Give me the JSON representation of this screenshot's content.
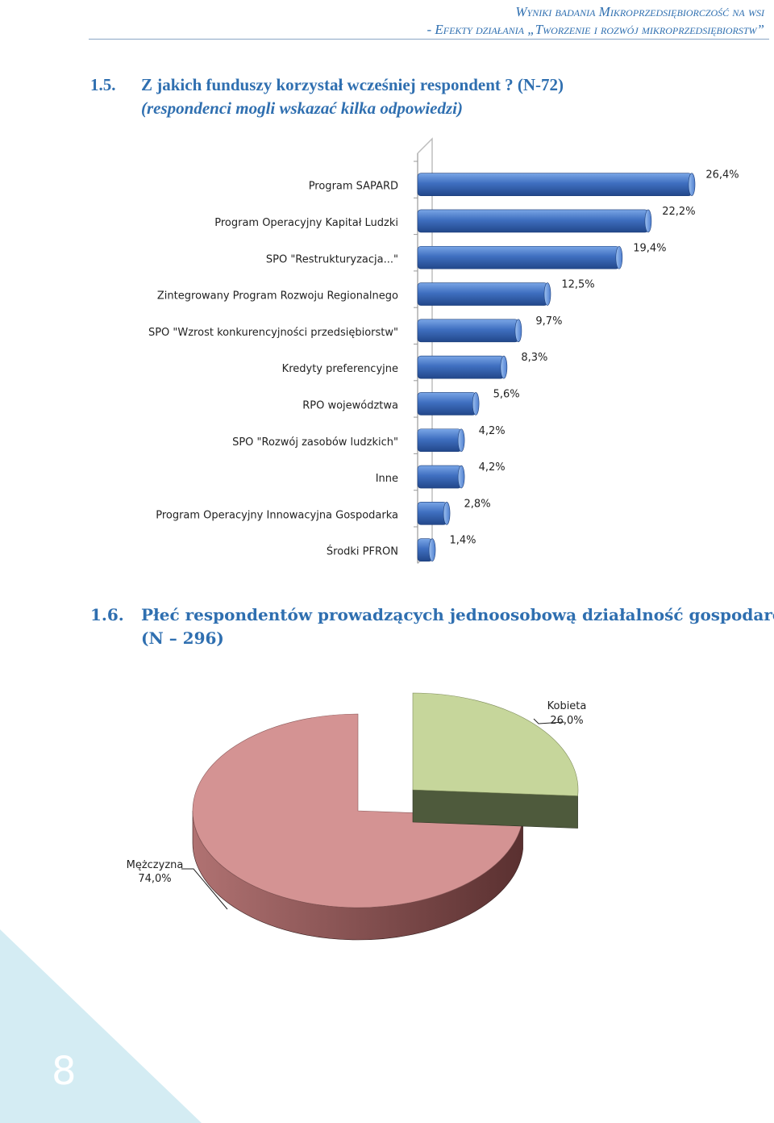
{
  "header": {
    "line1": "Wyniki badania Mikroprzedsiębiorczość na wsi",
    "line2": "- Efekty działania „Tworzenie i rozwój mikroprzedsiębiorstw”"
  },
  "section1": {
    "number": "1.5.",
    "question": "Z jakich funduszy korzystał wcześniej respondent ? (N-72)",
    "subtitle": "(respondenci mogli wskazać kilka odpowiedzi)"
  },
  "section2": {
    "number": "1.6.",
    "title_line1": "Płeć respondentów prowadzących jednoosobową działalność gospodarczą",
    "title_line2": "(N – 296)"
  },
  "page_number": "8",
  "colors": {
    "bar": "#3f6fc0",
    "bar_top": "#6f9be0",
    "pie_male": "#d49393",
    "pie_male_side": "#7a4444",
    "pie_female": "#c6d69b",
    "pie_female_side": "#4e5a3c",
    "accent": "#2f6fb0",
    "corner": "#d4ecf3"
  },
  "chart_data": [
    {
      "type": "bar",
      "orientation": "horizontal",
      "categories": [
        "Program SAPARD",
        "Program Operacyjny Kapitał Ludzki",
        "SPO \"Restrukturyzacja...\"",
        "Zintegrowany Program Rozwoju Regionalnego",
        "SPO \"Wzrost konkurencyjności przedsiębiorstw\"",
        "Kredyty preferencyjne",
        "RPO województwa",
        "SPO \"Rozwój zasobów ludzkich\"",
        "Inne",
        "Program Operacyjny Innowacyjna Gospodarka",
        "Środki PFRON"
      ],
      "values": [
        26.4,
        22.2,
        19.4,
        12.5,
        9.7,
        8.3,
        5.6,
        4.2,
        4.2,
        2.8,
        1.4
      ],
      "labels": [
        "26,4%",
        "22,2%",
        "19,4%",
        "12,5%",
        "9,7%",
        "8,3%",
        "5,6%",
        "4,2%",
        "4,2%",
        "2,8%",
        "1,4%"
      ],
      "xlim": [
        0,
        26.4
      ],
      "grid": false
    },
    {
      "type": "pie",
      "categories": [
        "Kobieta",
        "Mężczyzna"
      ],
      "values": [
        26.0,
        74.0
      ],
      "labels": [
        "26,0%",
        "74,0%"
      ]
    }
  ]
}
